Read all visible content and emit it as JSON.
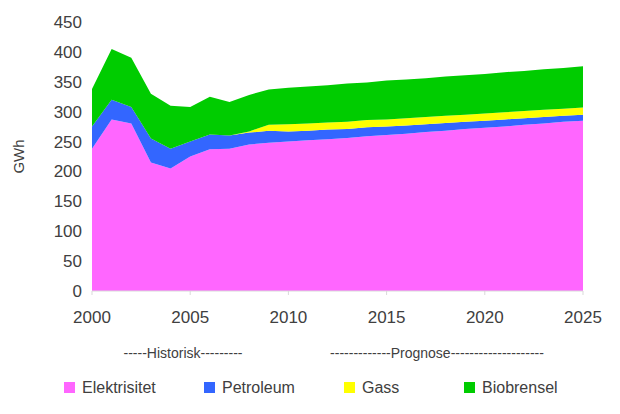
{
  "chart_data": {
    "type": "area",
    "stacked": true,
    "y_label": "GWh",
    "x": [
      2000,
      2001,
      2002,
      2003,
      2004,
      2005,
      2006,
      2007,
      2008,
      2009,
      2010,
      2011,
      2012,
      2013,
      2014,
      2015,
      2016,
      2017,
      2018,
      2019,
      2020,
      2021,
      2022,
      2023,
      2024,
      2025
    ],
    "series": [
      {
        "name": "Elektrisitet",
        "color": "#ff66ff",
        "values": [
          238,
          287,
          280,
          215,
          205,
          225,
          237,
          238,
          245,
          248,
          250,
          252,
          254,
          256,
          259,
          261,
          263,
          266,
          268,
          271,
          273,
          275,
          278,
          280,
          283,
          285
        ]
      },
      {
        "name": "Petroleum",
        "color": "#3366ff",
        "values": [
          37,
          33,
          28,
          40,
          33,
          25,
          25,
          22,
          20,
          20,
          17,
          16,
          16,
          15,
          15,
          14,
          14,
          13,
          13,
          12,
          12,
          12,
          11,
          11,
          10,
          10
        ]
      },
      {
        "name": "Gass",
        "color": "#ffff00",
        "values": [
          0,
          0,
          0,
          0,
          0,
          0,
          0,
          0,
          2,
          10,
          12,
          12,
          12,
          12,
          12,
          12,
          12,
          12,
          12,
          12,
          12,
          12,
          12,
          12,
          12,
          12
        ]
      },
      {
        "name": "Biobrensel",
        "color": "#00cc00",
        "values": [
          63,
          85,
          82,
          75,
          72,
          58,
          63,
          56,
          61,
          59,
          61,
          62,
          62,
          64,
          63,
          65,
          65,
          65,
          66,
          66,
          66,
          67,
          67,
          68,
          68,
          69
        ]
      }
    ],
    "xlim": [
      2000,
      2025
    ],
    "xticks": [
      2000,
      2005,
      2010,
      2015,
      2020,
      2025
    ],
    "ylim": [
      0,
      450
    ],
    "yticks": [
      0,
      50,
      100,
      150,
      200,
      250,
      300,
      350,
      400,
      450
    ],
    "grid": false,
    "legend": "bottom",
    "annotations": [
      "-----Historisk---------",
      "-------------Prognose--------------------"
    ]
  }
}
